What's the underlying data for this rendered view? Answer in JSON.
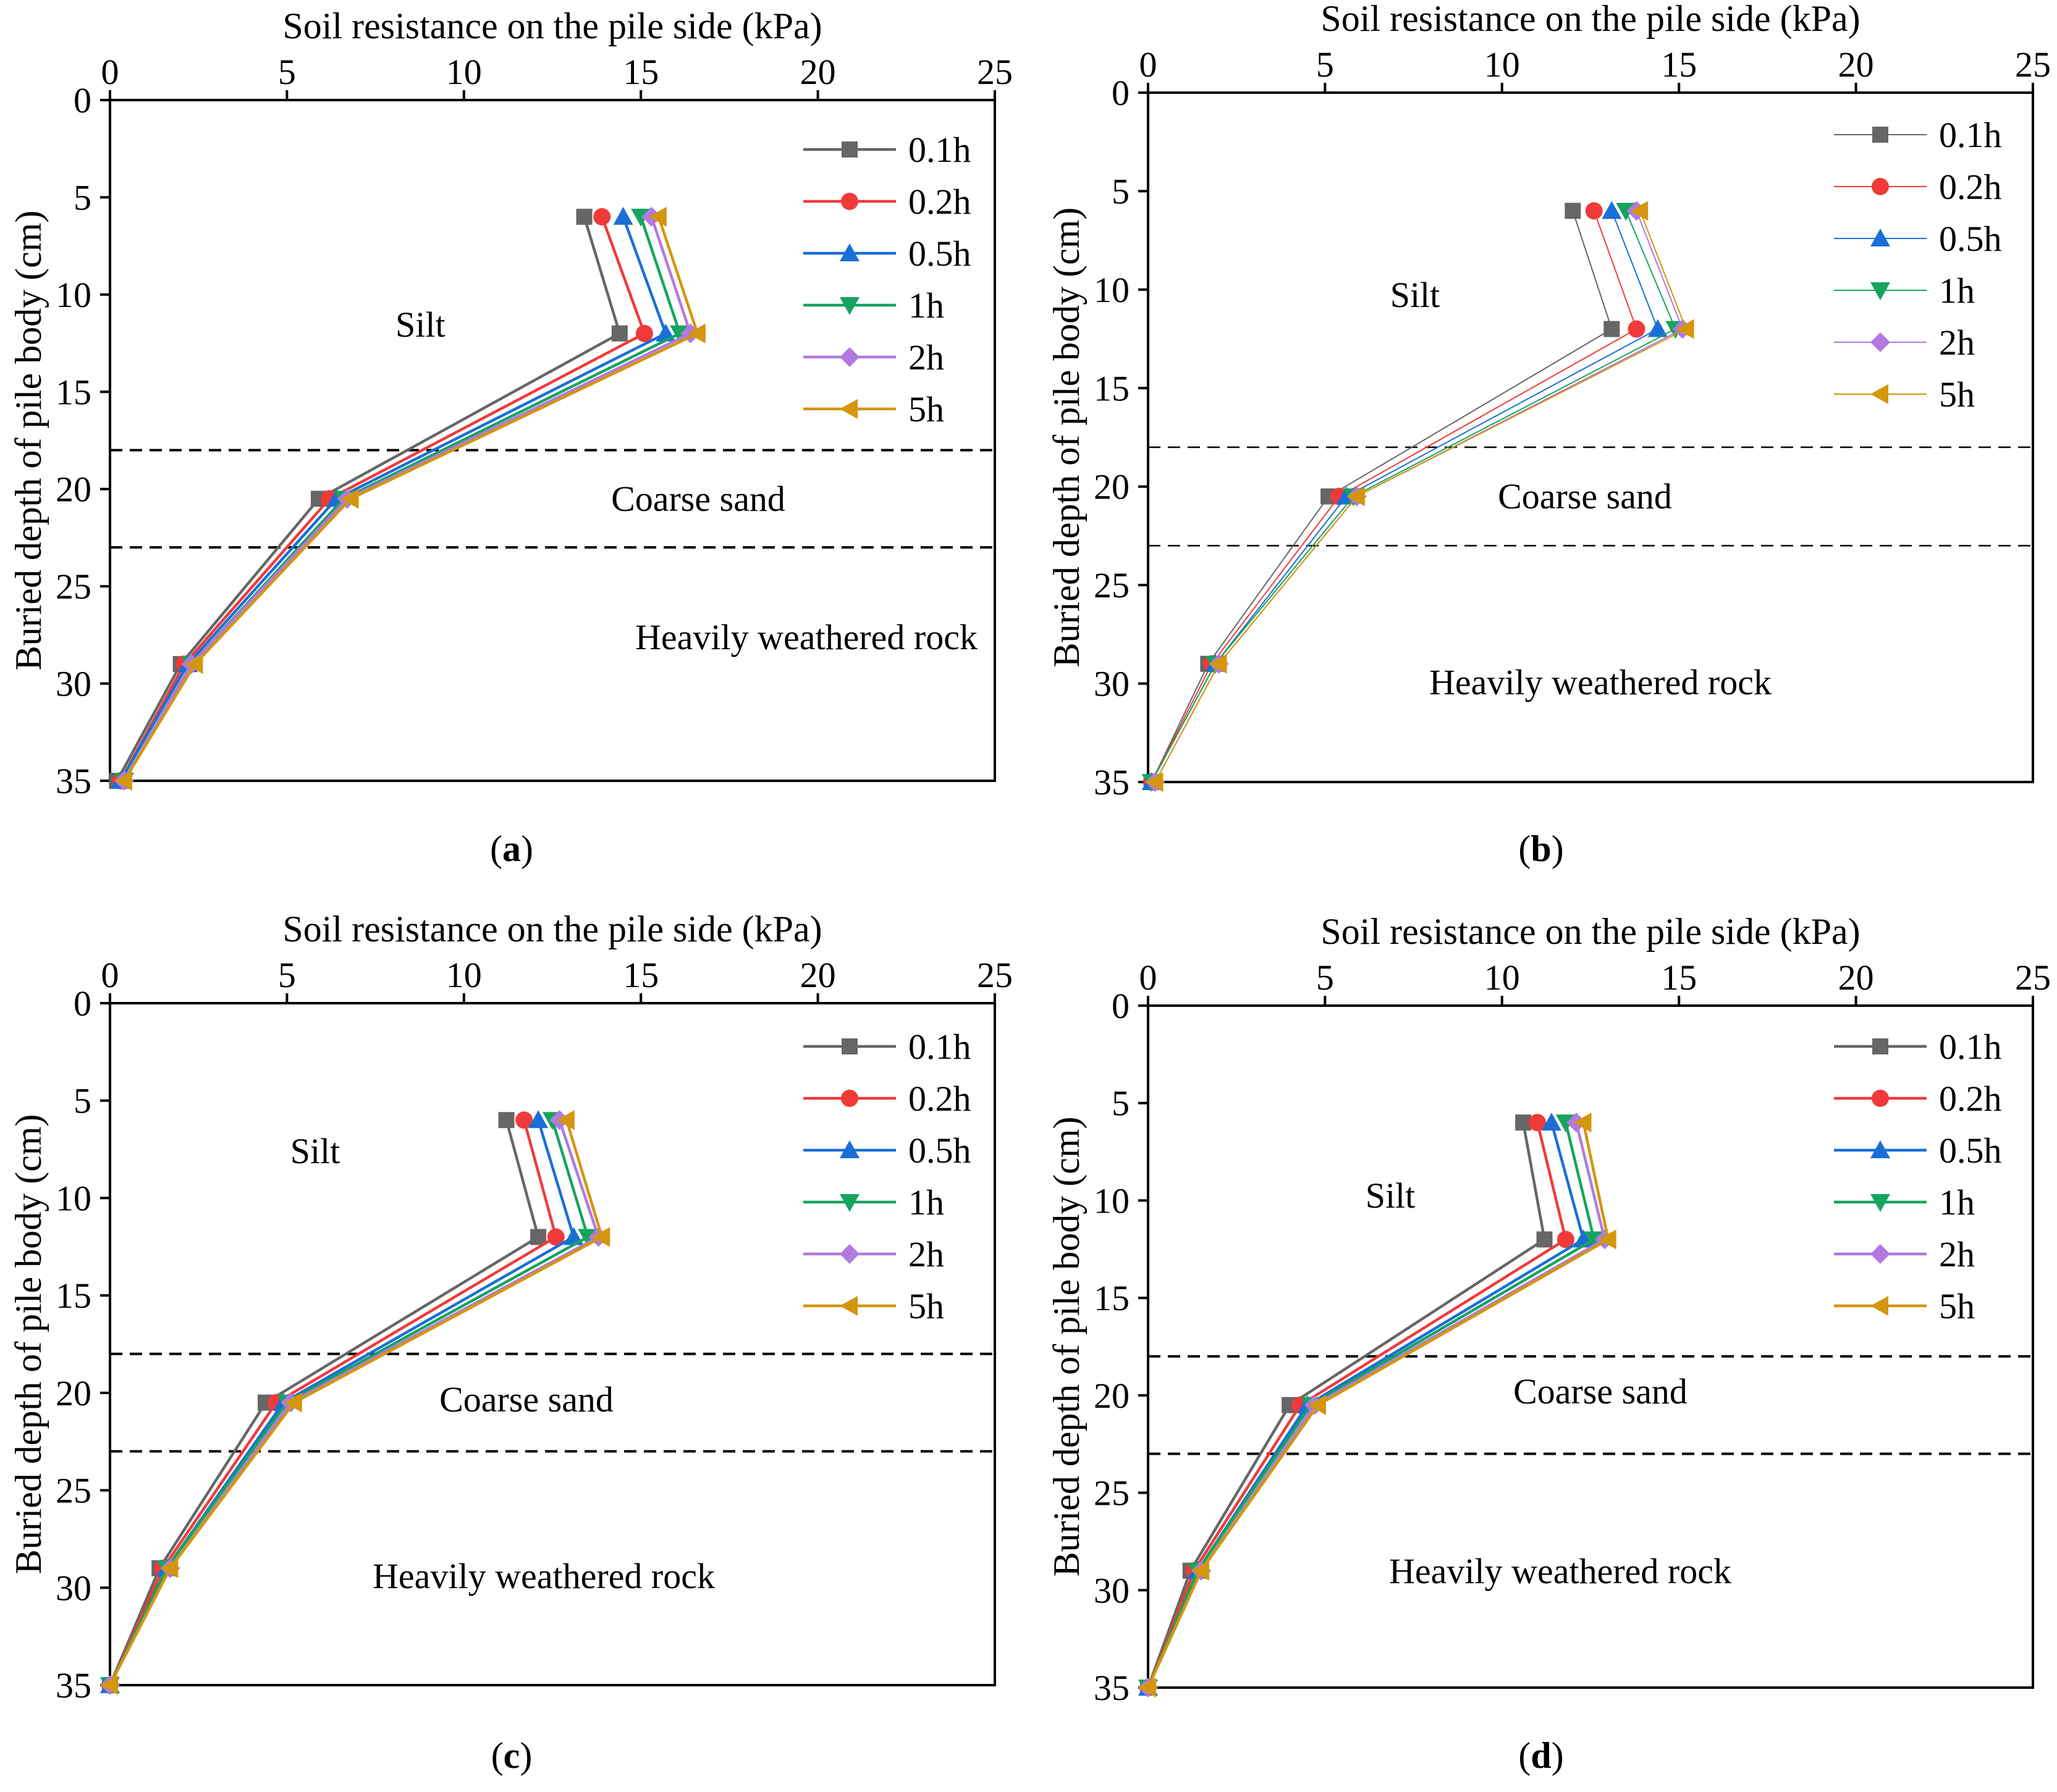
{
  "figure_title": "Soil resistance on the pile side vs buried depth of pile body",
  "colors": {
    "0.1h": "#666666",
    "0.2h": "#f03a3a",
    "0.5h": "#1a6fd6",
    "1h": "#16a45e",
    "2h": "#b279e0",
    "5h": "#d4960c",
    "axis": "#000000",
    "dashed": "#000000"
  },
  "markers": {
    "0.1h": "square",
    "0.2h": "circle",
    "0.5h": "triangle-up",
    "1h": "triangle-down",
    "2h": "diamond",
    "5h": "triangle-left"
  },
  "chart_data": [
    {
      "id": "a",
      "caption_letter": "a",
      "type": "line",
      "title": "Soil resistance on the pile side (kPa)",
      "xlabel": "Soil resistance on the pile side (kPa)",
      "ylabel": "Buried depth of pile body (cm)",
      "xlim": [
        0,
        25
      ],
      "ylim": [
        0,
        35
      ],
      "xticks": [
        "0",
        "5",
        "10",
        "15",
        "20",
        "25"
      ],
      "yticks": [
        "0",
        "5",
        "10",
        "15",
        "20",
        "25",
        "30",
        "35"
      ],
      "depths": [
        6,
        12,
        20.5,
        29,
        35
      ],
      "series": [
        {
          "name": "0.1h",
          "values": [
            13.4,
            14.4,
            5.9,
            2.0,
            0.2
          ]
        },
        {
          "name": "0.2h",
          "values": [
            13.9,
            15.1,
            6.2,
            2.1,
            0.3
          ]
        },
        {
          "name": "0.5h",
          "values": [
            14.5,
            15.7,
            6.4,
            2.2,
            0.3
          ]
        },
        {
          "name": "1h",
          "values": [
            15.0,
            16.1,
            6.6,
            2.3,
            0.4
          ]
        },
        {
          "name": "2h",
          "values": [
            15.3,
            16.4,
            6.7,
            2.3,
            0.4
          ]
        },
        {
          "name": "5h",
          "values": [
            15.5,
            16.6,
            6.8,
            2.4,
            0.4
          ]
        }
      ],
      "boundaries": [
        18,
        23
      ],
      "legend": [
        "0.1h",
        "0.2h",
        "0.5h",
        "1h",
        "2h",
        "5h"
      ],
      "legend_position": "top-right",
      "annotations": [
        "Silt",
        "Coarse sand",
        "Heavily weathered rock"
      ]
    },
    {
      "id": "b",
      "caption_letter": "b",
      "type": "line",
      "title": "Soil resistance on the pile side (kPa)",
      "xlabel": "Soil resistance on the pile side (kPa)",
      "ylabel": "Buried depth of pile body (cm)",
      "xlim": [
        0,
        25
      ],
      "ylim": [
        0,
        35
      ],
      "xticks": [
        "0",
        "5",
        "10",
        "15",
        "20",
        "25"
      ],
      "yticks": [
        "0",
        "5",
        "10",
        "15",
        "20",
        "25",
        "30",
        "35"
      ],
      "depths": [
        6,
        12,
        20.5,
        29,
        35
      ],
      "series": [
        {
          "name": "0.1h",
          "values": [
            12.0,
            13.1,
            5.1,
            1.7,
            0.1
          ]
        },
        {
          "name": "0.2h",
          "values": [
            12.6,
            13.8,
            5.4,
            1.8,
            0.1
          ]
        },
        {
          "name": "0.5h",
          "values": [
            13.1,
            14.4,
            5.6,
            1.9,
            0.1
          ]
        },
        {
          "name": "1h",
          "values": [
            13.5,
            14.9,
            5.8,
            1.9,
            0.1
          ]
        },
        {
          "name": "2h",
          "values": [
            13.8,
            15.1,
            5.9,
            2.0,
            0.2
          ]
        },
        {
          "name": "5h",
          "values": [
            13.9,
            15.2,
            5.9,
            2.0,
            0.2
          ]
        }
      ],
      "boundaries": [
        18,
        23
      ],
      "legend": [
        "0.1h",
        "0.2h",
        "0.5h",
        "1h",
        "2h",
        "5h"
      ],
      "legend_position": "top-right",
      "annotations": [
        "Silt",
        "Coarse sand",
        "Heavily weathered rock"
      ]
    },
    {
      "id": "c",
      "caption_letter": "c",
      "type": "line",
      "title": "Soil resistance on the pile side (kPa)",
      "xlabel": "Soil resistance on the pile side (kPa)",
      "ylabel": "Buried depth of pile body (cm)",
      "xlim": [
        0,
        25
      ],
      "ylim": [
        0,
        35
      ],
      "xticks": [
        "0",
        "5",
        "10",
        "15",
        "20",
        "25"
      ],
      "yticks": [
        "0",
        "5",
        "10",
        "15",
        "20",
        "25",
        "30",
        "35"
      ],
      "depths": [
        6,
        12,
        20.5,
        29,
        35
      ],
      "series": [
        {
          "name": "0.1h",
          "values": [
            11.2,
            12.1,
            4.4,
            1.4,
            0.0
          ]
        },
        {
          "name": "0.2h",
          "values": [
            11.7,
            12.6,
            4.7,
            1.5,
            0.0
          ]
        },
        {
          "name": "0.5h",
          "values": [
            12.1,
            13.1,
            4.9,
            1.6,
            0.0
          ]
        },
        {
          "name": "1h",
          "values": [
            12.5,
            13.5,
            5.0,
            1.6,
            0.0
          ]
        },
        {
          "name": "2h",
          "values": [
            12.7,
            13.8,
            5.1,
            1.7,
            0.0
          ]
        },
        {
          "name": "5h",
          "values": [
            12.9,
            13.9,
            5.2,
            1.7,
            0.0
          ]
        }
      ],
      "boundaries": [
        18,
        23
      ],
      "legend": [
        "0.1h",
        "0.2h",
        "0.5h",
        "1h",
        "2h",
        "5h"
      ],
      "legend_position": "top-right",
      "annotations": [
        "Silt",
        "Coarse sand",
        "Heavily weathered rock"
      ]
    },
    {
      "id": "d",
      "caption_letter": "d",
      "type": "line",
      "title": "Soil resistance on the pile side (kPa)",
      "xlabel": "Soil resistance on the pile side (kPa)",
      "ylabel": "Buried depth of pile body (cm)",
      "xlim": [
        0,
        25
      ],
      "ylim": [
        0,
        35
      ],
      "xticks": [
        "0",
        "5",
        "10",
        "15",
        "20",
        "25"
      ],
      "yticks": [
        "0",
        "5",
        "10",
        "15",
        "20",
        "25",
        "30",
        "35"
      ],
      "depths": [
        6,
        12,
        20.5,
        29,
        35
      ],
      "series": [
        {
          "name": "0.1h",
          "values": [
            10.6,
            11.2,
            4.0,
            1.2,
            0.0
          ]
        },
        {
          "name": "0.2h",
          "values": [
            11.0,
            11.8,
            4.3,
            1.3,
            0.0
          ]
        },
        {
          "name": "0.5h",
          "values": [
            11.4,
            12.3,
            4.5,
            1.4,
            0.0
          ]
        },
        {
          "name": "1h",
          "values": [
            11.8,
            12.6,
            4.6,
            1.4,
            0.0
          ]
        },
        {
          "name": "2h",
          "values": [
            12.1,
            12.9,
            4.7,
            1.5,
            0.0
          ]
        },
        {
          "name": "5h",
          "values": [
            12.3,
            13.0,
            4.8,
            1.5,
            0.0
          ]
        }
      ],
      "boundaries": [
        18,
        23
      ],
      "legend": [
        "0.1h",
        "0.2h",
        "0.5h",
        "1h",
        "2h",
        "5h"
      ],
      "legend_position": "top-right",
      "annotations": [
        "Silt",
        "Coarse sand",
        "Heavily weathered rock"
      ]
    }
  ]
}
